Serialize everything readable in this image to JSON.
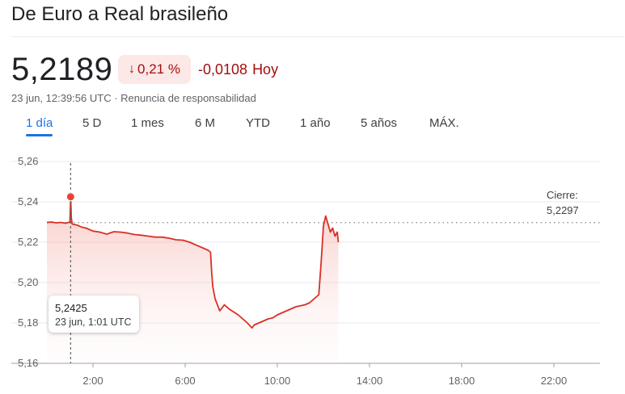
{
  "header": {
    "title": "De Euro a Real brasileño",
    "price": "5,2189",
    "change_arrow_icon": "arrow-down-icon",
    "change_percent": "0,21 %",
    "change_abs": "-0,0108",
    "change_period": "Hoy",
    "timestamp": "23 jun, 12:39:56 UTC",
    "separator": "·",
    "disclaimer": "Renuncia de responsabilidad",
    "colors": {
      "negative": "#a50e0e",
      "negative_bg": "#fce8e6",
      "accent": "#1a73e8"
    }
  },
  "tabs": [
    {
      "label": "1 día",
      "active": true
    },
    {
      "label": "5 D",
      "active": false
    },
    {
      "label": "1 mes",
      "active": false
    },
    {
      "label": "6 M",
      "active": false
    },
    {
      "label": "YTD",
      "active": false
    },
    {
      "label": "1 año",
      "active": false
    },
    {
      "label": "5 años",
      "active": false
    },
    {
      "label": "MÁX.",
      "active": false
    }
  ],
  "chart_data": {
    "type": "line",
    "title": "",
    "xlabel": "",
    "ylabel": "",
    "x_unit": "hours UTC",
    "xlim": [
      0,
      24
    ],
    "ylim": [
      5.16,
      5.26
    ],
    "y_ticks": [
      5.26,
      5.24,
      5.22,
      5.2,
      5.18,
      5.16
    ],
    "y_tick_labels": [
      "5,26",
      "5,24",
      "5,22",
      "5,20",
      "5,18",
      "5,16"
    ],
    "x_ticks": [
      2,
      6,
      10,
      14,
      18,
      22
    ],
    "x_tick_labels": [
      "2:00",
      "6:00",
      "10:00",
      "14:00",
      "18:00",
      "22:00"
    ],
    "grid": true,
    "line_color": "#d93025",
    "series": [
      {
        "name": "",
        "x": [
          0.0,
          0.2,
          0.4,
          0.6,
          0.8,
          1.0,
          1.03,
          1.06,
          1.1,
          1.3,
          1.5,
          1.7,
          2.0,
          2.3,
          2.6,
          2.9,
          3.2,
          3.5,
          3.8,
          4.1,
          4.4,
          4.7,
          5.0,
          5.3,
          5.6,
          5.9,
          6.2,
          6.5,
          6.8,
          7.0,
          7.1,
          7.15,
          7.2,
          7.3,
          7.5,
          7.7,
          7.9,
          8.1,
          8.3,
          8.5,
          8.7,
          8.9,
          9.0,
          9.2,
          9.4,
          9.6,
          9.8,
          10.0,
          10.2,
          10.4,
          10.6,
          10.8,
          11.0,
          11.2,
          11.4,
          11.6,
          11.8,
          11.9,
          12.0,
          12.1,
          12.2,
          12.3,
          12.4,
          12.5,
          12.6,
          12.65
        ],
        "values": [
          5.2298,
          5.23,
          5.2296,
          5.2298,
          5.2294,
          5.23,
          5.2425,
          5.232,
          5.229,
          5.2285,
          5.2275,
          5.227,
          5.2255,
          5.225,
          5.224,
          5.2252,
          5.225,
          5.2245,
          5.2238,
          5.2235,
          5.223,
          5.2225,
          5.2225,
          5.222,
          5.2212,
          5.221,
          5.22,
          5.2185,
          5.217,
          5.216,
          5.215,
          5.205,
          5.198,
          5.192,
          5.186,
          5.189,
          5.187,
          5.1855,
          5.184,
          5.182,
          5.18,
          5.1775,
          5.179,
          5.18,
          5.181,
          5.182,
          5.1825,
          5.184,
          5.185,
          5.186,
          5.187,
          5.188,
          5.1885,
          5.189,
          5.19,
          5.192,
          5.194,
          5.21,
          5.228,
          5.233,
          5.229,
          5.225,
          5.227,
          5.223,
          5.225,
          5.22
        ]
      }
    ],
    "previous_close": {
      "label": "Cierre:",
      "value": 5.2297,
      "value_label": "5,2297"
    },
    "hover": {
      "x": 1.03,
      "value": 5.2425,
      "value_label": "5,2425",
      "time_label": "23 jun, 1:01 UTC"
    }
  }
}
